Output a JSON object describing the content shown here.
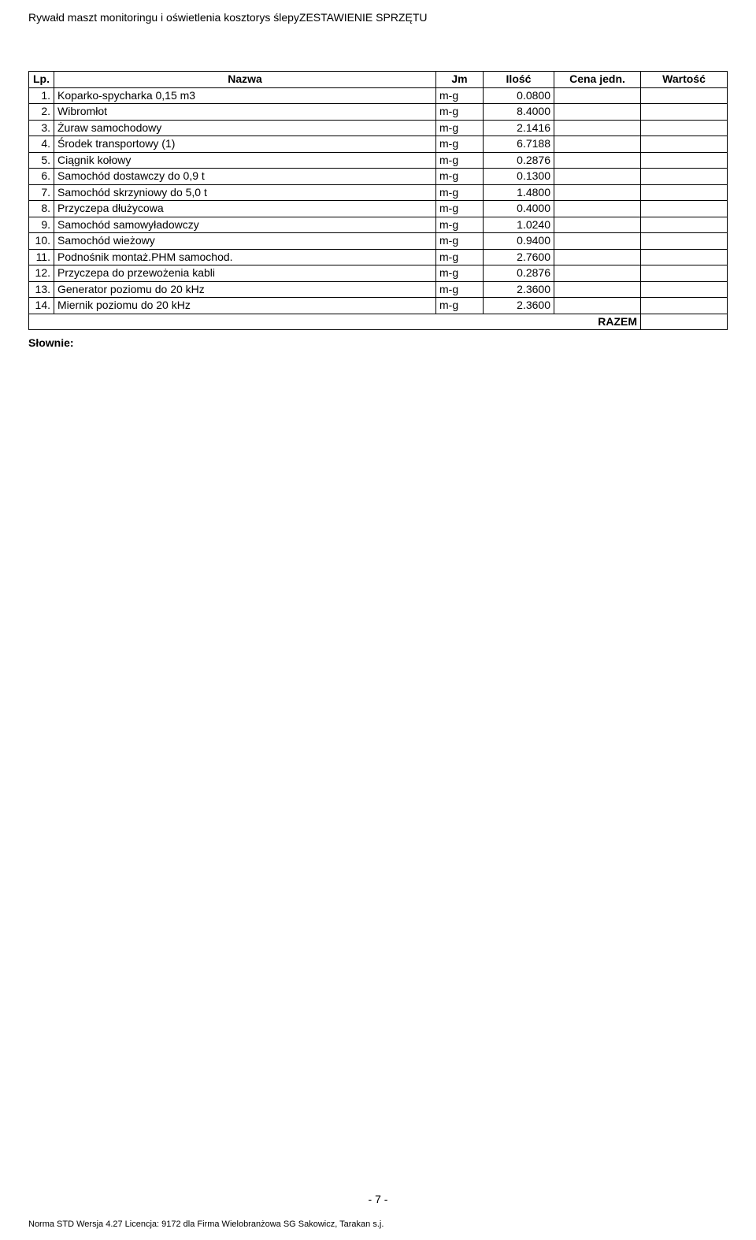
{
  "header": {
    "left": "Rywałd maszt monitoringu i oświetlenia kosztorys ślepy",
    "right": "ZESTAWIENIE SPRZĘTU"
  },
  "table": {
    "columns": [
      "Lp.",
      "Nazwa",
      "Jm",
      "Ilość",
      "Cena jedn.",
      "Wartość"
    ],
    "rows": [
      {
        "lp": "1.",
        "name": "Koparko-spycharka 0,15 m3",
        "jm": "m-g",
        "qty": "0.0800",
        "up": "",
        "val": ""
      },
      {
        "lp": "2.",
        "name": "Wibromłot",
        "jm": "m-g",
        "qty": "8.4000",
        "up": "",
        "val": ""
      },
      {
        "lp": "3.",
        "name": "Żuraw samochodowy",
        "jm": "m-g",
        "qty": "2.1416",
        "up": "",
        "val": ""
      },
      {
        "lp": "4.",
        "name": "Środek transportowy (1)",
        "jm": "m-g",
        "qty": "6.7188",
        "up": "",
        "val": ""
      },
      {
        "lp": "5.",
        "name": "Ciągnik kołowy",
        "jm": "m-g",
        "qty": "0.2876",
        "up": "",
        "val": ""
      },
      {
        "lp": "6.",
        "name": "Samochód dostawczy do 0,9 t",
        "jm": "m-g",
        "qty": "0.1300",
        "up": "",
        "val": ""
      },
      {
        "lp": "7.",
        "name": "Samochód skrzyniowy do 5,0 t",
        "jm": "m-g",
        "qty": "1.4800",
        "up": "",
        "val": ""
      },
      {
        "lp": "8.",
        "name": "Przyczepa dłużycowa",
        "jm": "m-g",
        "qty": "0.4000",
        "up": "",
        "val": ""
      },
      {
        "lp": "9.",
        "name": "Samochód samowyładowczy",
        "jm": "m-g",
        "qty": "1.0240",
        "up": "",
        "val": ""
      },
      {
        "lp": "10.",
        "name": "Samochód wieżowy",
        "jm": "m-g",
        "qty": "0.9400",
        "up": "",
        "val": ""
      },
      {
        "lp": "11.",
        "name": "Podnośnik montaż.PHM samochod.",
        "jm": "m-g",
        "qty": "2.7600",
        "up": "",
        "val": ""
      },
      {
        "lp": "12.",
        "name": "Przyczepa do przewożenia kabli",
        "jm": "m-g",
        "qty": "0.2876",
        "up": "",
        "val": ""
      },
      {
        "lp": "13.",
        "name": "Generator poziomu do 20 kHz",
        "jm": "m-g",
        "qty": "2.3600",
        "up": "",
        "val": ""
      },
      {
        "lp": "14.",
        "name": "Miernik poziomu do 20 kHz",
        "jm": "m-g",
        "qty": "2.3600",
        "up": "",
        "val": ""
      }
    ],
    "razem_label": "RAZEM",
    "razem_value": ""
  },
  "slownie_label": "Słownie:",
  "page_number": "- 7 -",
  "footer": "Norma STD Wersja 4.27 Licencja: 9172 dla Firma Wielobranżowa SG Sakowicz, Tarakan s.j."
}
